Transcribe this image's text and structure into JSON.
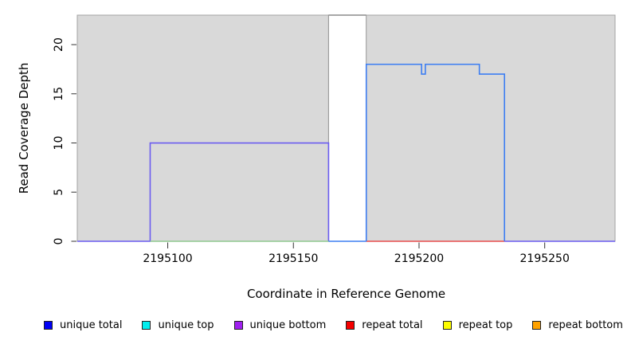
{
  "chart_data": {
    "type": "line",
    "title": "",
    "xlabel": "Coordinate in Reference Genome",
    "ylabel": "Read Coverage Depth",
    "xlim": [
      2195064,
      2195278
    ],
    "ylim": [
      0,
      23
    ],
    "x_ticks": [
      2195100,
      2195150,
      2195200,
      2195250
    ],
    "y_ticks": [
      0,
      5,
      10,
      15,
      20
    ],
    "grid": false,
    "legend_position": "bottom",
    "background_regions": [
      {
        "name": "alignment-block-left",
        "x1": 2195064,
        "x2": 2195164,
        "fill": "#d9d9d9",
        "stroke": "#a3a3a3"
      },
      {
        "name": "gap-block",
        "x1": 2195164,
        "x2": 2195179,
        "fill": "#ffffff",
        "stroke": "#949494"
      },
      {
        "name": "alignment-block-right",
        "x1": 2195179,
        "x2": 2195278,
        "fill": "#d9d9d9",
        "stroke": "#a3a3a3"
      }
    ],
    "series": [
      {
        "name": "unique-bottom-coverage-step",
        "color": "#6b5cf0",
        "width": 1.6,
        "points": [
          [
            2195064,
            0
          ],
          [
            2195093,
            0
          ],
          [
            2195093,
            10
          ],
          [
            2195164,
            10
          ],
          [
            2195164,
            0
          ]
        ]
      },
      {
        "name": "green-baseline-under-block",
        "color": "#8fc98f",
        "width": 1.6,
        "points": [
          [
            2195093,
            0
          ],
          [
            2195164,
            0
          ]
        ]
      },
      {
        "name": "gap-baseline",
        "color": "#3d7ef2",
        "width": 1.6,
        "points": [
          [
            2195164,
            0
          ],
          [
            2195179,
            0
          ]
        ]
      },
      {
        "name": "clipped-coverage-in-gap",
        "color": "#8c8c8c",
        "width": 1.6,
        "points": [
          [
            2195164,
            23
          ],
          [
            2195179,
            23
          ]
        ]
      },
      {
        "name": "repeat-total-baseline",
        "color": "#e84d4d",
        "width": 1.6,
        "points": [
          [
            2195179,
            0
          ],
          [
            2195234,
            0
          ]
        ]
      },
      {
        "name": "unique-total-coverage-step",
        "color": "#3d7ef2",
        "width": 1.6,
        "points": [
          [
            2195179,
            0
          ],
          [
            2195179,
            18
          ],
          [
            2195201,
            18
          ],
          [
            2195201,
            17
          ],
          [
            2195202.5,
            17
          ],
          [
            2195202.5,
            18
          ],
          [
            2195224,
            18
          ],
          [
            2195224,
            17
          ],
          [
            2195234,
            17
          ],
          [
            2195234,
            0
          ]
        ]
      },
      {
        "name": "right-baseline",
        "color": "#6b5cf0",
        "width": 1.6,
        "points": [
          [
            2195234,
            0
          ],
          [
            2195278,
            0
          ]
        ]
      }
    ],
    "legend": [
      {
        "label": "unique total",
        "color": "#0000f5"
      },
      {
        "label": "unique top",
        "color": "#00eeee"
      },
      {
        "label": "unique bottom",
        "color": "#a020f0"
      },
      {
        "label": "repeat total",
        "color": "#f50000"
      },
      {
        "label": "repeat top",
        "color": "#fdfd00"
      },
      {
        "label": "repeat bottom",
        "color": "#ffa200"
      }
    ]
  }
}
